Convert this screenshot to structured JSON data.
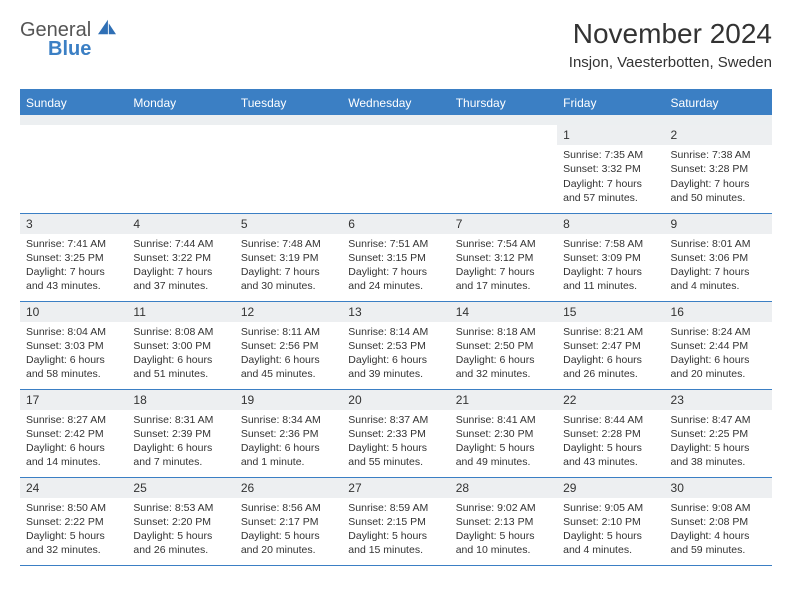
{
  "brand": {
    "word1": "General",
    "word2": "Blue",
    "word1_color": "#6a6a6a",
    "word2_color": "#3b7fc4",
    "icon_color": "#2f6fb5"
  },
  "header": {
    "title": "November 2024",
    "location": "Insjon, Vaesterbotten, Sweden"
  },
  "style": {
    "header_bg": "#3b7fc4",
    "header_text": "#ffffff",
    "band_bg": "#edeff1",
    "rule_color": "#3b7fc4",
    "body_text": "#333333",
    "page_bg": "#ffffff",
    "dow_fontsize": 12,
    "cell_fontsize": 10.5
  },
  "days_of_week": [
    "Sunday",
    "Monday",
    "Tuesday",
    "Wednesday",
    "Thursday",
    "Friday",
    "Saturday"
  ],
  "weeks": [
    [
      {
        "n": "",
        "lines": []
      },
      {
        "n": "",
        "lines": []
      },
      {
        "n": "",
        "lines": []
      },
      {
        "n": "",
        "lines": []
      },
      {
        "n": "",
        "lines": []
      },
      {
        "n": "1",
        "lines": [
          "Sunrise: 7:35 AM",
          "Sunset: 3:32 PM",
          "Daylight: 7 hours and 57 minutes."
        ]
      },
      {
        "n": "2",
        "lines": [
          "Sunrise: 7:38 AM",
          "Sunset: 3:28 PM",
          "Daylight: 7 hours and 50 minutes."
        ]
      }
    ],
    [
      {
        "n": "3",
        "lines": [
          "Sunrise: 7:41 AM",
          "Sunset: 3:25 PM",
          "Daylight: 7 hours and 43 minutes."
        ]
      },
      {
        "n": "4",
        "lines": [
          "Sunrise: 7:44 AM",
          "Sunset: 3:22 PM",
          "Daylight: 7 hours and 37 minutes."
        ]
      },
      {
        "n": "5",
        "lines": [
          "Sunrise: 7:48 AM",
          "Sunset: 3:19 PM",
          "Daylight: 7 hours and 30 minutes."
        ]
      },
      {
        "n": "6",
        "lines": [
          "Sunrise: 7:51 AM",
          "Sunset: 3:15 PM",
          "Daylight: 7 hours and 24 minutes."
        ]
      },
      {
        "n": "7",
        "lines": [
          "Sunrise: 7:54 AM",
          "Sunset: 3:12 PM",
          "Daylight: 7 hours and 17 minutes."
        ]
      },
      {
        "n": "8",
        "lines": [
          "Sunrise: 7:58 AM",
          "Sunset: 3:09 PM",
          "Daylight: 7 hours and 11 minutes."
        ]
      },
      {
        "n": "9",
        "lines": [
          "Sunrise: 8:01 AM",
          "Sunset: 3:06 PM",
          "Daylight: 7 hours and 4 minutes."
        ]
      }
    ],
    [
      {
        "n": "10",
        "lines": [
          "Sunrise: 8:04 AM",
          "Sunset: 3:03 PM",
          "Daylight: 6 hours and 58 minutes."
        ]
      },
      {
        "n": "11",
        "lines": [
          "Sunrise: 8:08 AM",
          "Sunset: 3:00 PM",
          "Daylight: 6 hours and 51 minutes."
        ]
      },
      {
        "n": "12",
        "lines": [
          "Sunrise: 8:11 AM",
          "Sunset: 2:56 PM",
          "Daylight: 6 hours and 45 minutes."
        ]
      },
      {
        "n": "13",
        "lines": [
          "Sunrise: 8:14 AM",
          "Sunset: 2:53 PM",
          "Daylight: 6 hours and 39 minutes."
        ]
      },
      {
        "n": "14",
        "lines": [
          "Sunrise: 8:18 AM",
          "Sunset: 2:50 PM",
          "Daylight: 6 hours and 32 minutes."
        ]
      },
      {
        "n": "15",
        "lines": [
          "Sunrise: 8:21 AM",
          "Sunset: 2:47 PM",
          "Daylight: 6 hours and 26 minutes."
        ]
      },
      {
        "n": "16",
        "lines": [
          "Sunrise: 8:24 AM",
          "Sunset: 2:44 PM",
          "Daylight: 6 hours and 20 minutes."
        ]
      }
    ],
    [
      {
        "n": "17",
        "lines": [
          "Sunrise: 8:27 AM",
          "Sunset: 2:42 PM",
          "Daylight: 6 hours and 14 minutes."
        ]
      },
      {
        "n": "18",
        "lines": [
          "Sunrise: 8:31 AM",
          "Sunset: 2:39 PM",
          "Daylight: 6 hours and 7 minutes."
        ]
      },
      {
        "n": "19",
        "lines": [
          "Sunrise: 8:34 AM",
          "Sunset: 2:36 PM",
          "Daylight: 6 hours and 1 minute."
        ]
      },
      {
        "n": "20",
        "lines": [
          "Sunrise: 8:37 AM",
          "Sunset: 2:33 PM",
          "Daylight: 5 hours and 55 minutes."
        ]
      },
      {
        "n": "21",
        "lines": [
          "Sunrise: 8:41 AM",
          "Sunset: 2:30 PM",
          "Daylight: 5 hours and 49 minutes."
        ]
      },
      {
        "n": "22",
        "lines": [
          "Sunrise: 8:44 AM",
          "Sunset: 2:28 PM",
          "Daylight: 5 hours and 43 minutes."
        ]
      },
      {
        "n": "23",
        "lines": [
          "Sunrise: 8:47 AM",
          "Sunset: 2:25 PM",
          "Daylight: 5 hours and 38 minutes."
        ]
      }
    ],
    [
      {
        "n": "24",
        "lines": [
          "Sunrise: 8:50 AM",
          "Sunset: 2:22 PM",
          "Daylight: 5 hours and 32 minutes."
        ]
      },
      {
        "n": "25",
        "lines": [
          "Sunrise: 8:53 AM",
          "Sunset: 2:20 PM",
          "Daylight: 5 hours and 26 minutes."
        ]
      },
      {
        "n": "26",
        "lines": [
          "Sunrise: 8:56 AM",
          "Sunset: 2:17 PM",
          "Daylight: 5 hours and 20 minutes."
        ]
      },
      {
        "n": "27",
        "lines": [
          "Sunrise: 8:59 AM",
          "Sunset: 2:15 PM",
          "Daylight: 5 hours and 15 minutes."
        ]
      },
      {
        "n": "28",
        "lines": [
          "Sunrise: 9:02 AM",
          "Sunset: 2:13 PM",
          "Daylight: 5 hours and 10 minutes."
        ]
      },
      {
        "n": "29",
        "lines": [
          "Sunrise: 9:05 AM",
          "Sunset: 2:10 PM",
          "Daylight: 5 hours and 4 minutes."
        ]
      },
      {
        "n": "30",
        "lines": [
          "Sunrise: 9:08 AM",
          "Sunset: 2:08 PM",
          "Daylight: 4 hours and 59 minutes."
        ]
      }
    ]
  ]
}
